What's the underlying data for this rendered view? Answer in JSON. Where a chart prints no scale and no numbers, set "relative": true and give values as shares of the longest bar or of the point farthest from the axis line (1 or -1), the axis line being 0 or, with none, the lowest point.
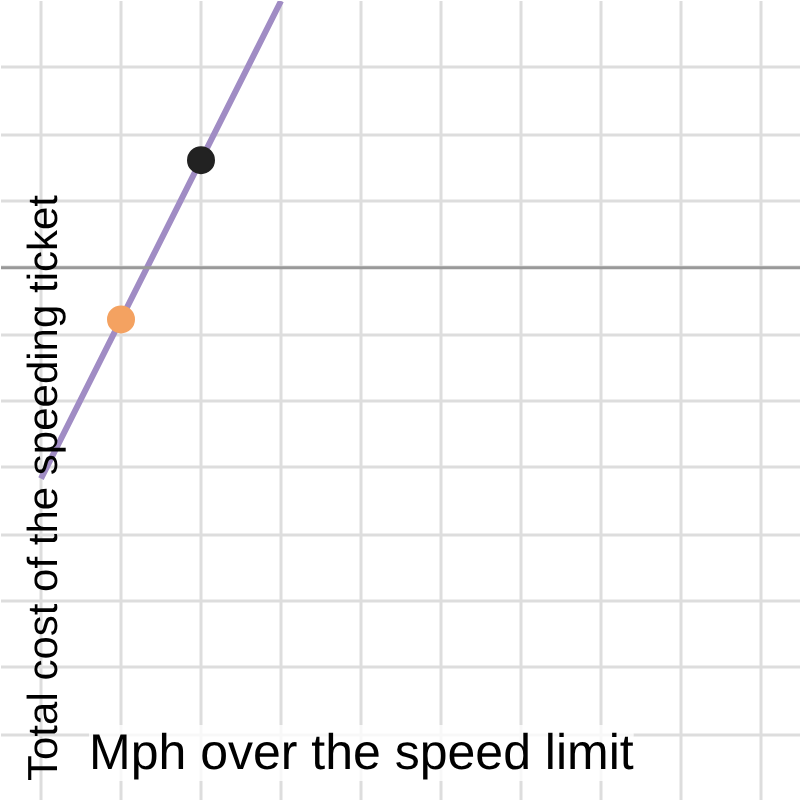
{
  "chart_data": {
    "type": "line",
    "relative": true,
    "xlabel": "Mph over the speed limit",
    "ylabel": "Total cost of the speeding ticket",
    "categories": [
      null,
      null,
      null,
      null,
      null,
      null,
      null,
      null,
      null,
      null
    ],
    "grid": true,
    "tick_labels": false,
    "series": [
      {
        "color": "#a08cc4",
        "values": [
          -0.791,
          -0.194,
          0.403,
          1,
          null,
          null,
          null,
          null,
          null,
          null
        ],
        "marker": "none",
        "line_style": "solid"
      },
      {
        "color": "#f4a261",
        "values": [
          null,
          -0.194,
          null,
          null,
          null,
          null,
          null,
          null,
          null,
          null
        ],
        "marker": "circle"
      },
      {
        "color": "#222222",
        "values": [
          null,
          null,
          0.403,
          null,
          null,
          null,
          null,
          null,
          null,
          null
        ],
        "marker": "circle"
      }
    ]
  }
}
